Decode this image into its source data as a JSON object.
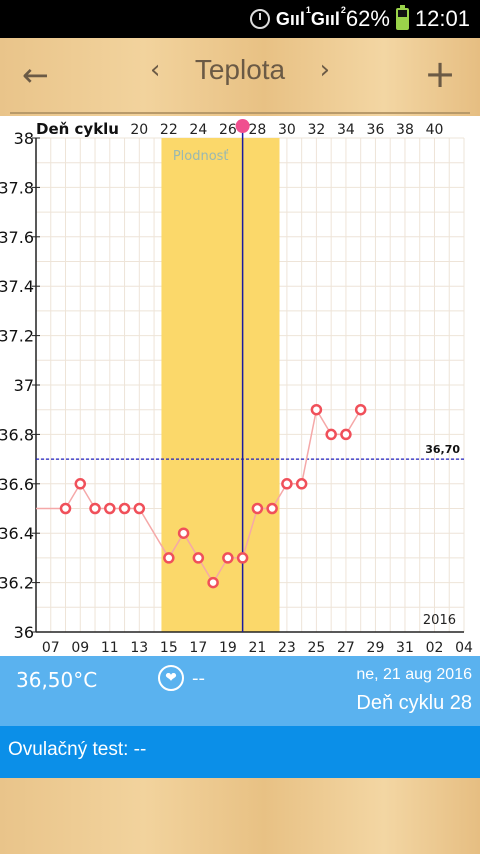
{
  "status_bar": {
    "battery": "62%",
    "time": "12:01",
    "signal_sim1": "1",
    "signal_sim2": "2",
    "signal_label": "G"
  },
  "toolbar": {
    "title": "Teplota",
    "back_icon": "arrow-left-icon",
    "add_icon": "plus-icon"
  },
  "chart_data": {
    "type": "line",
    "top_axis_label": "Deň cyklu",
    "top_axis_ticks": [
      "20",
      "22",
      "24",
      "26",
      "28",
      "30",
      "32",
      "34",
      "36",
      "38",
      "40"
    ],
    "fertile_label": "Plodnosť",
    "year_label": "2016",
    "coverline_label": "36,70",
    "coverline_value": 36.7,
    "ylim": [
      36,
      38
    ],
    "y_ticks": [
      "36",
      "36.2",
      "36.4",
      "36.6",
      "36.8",
      "37",
      "37.2",
      "37.4",
      "37.6",
      "37.8",
      "38"
    ],
    "x_ticks": [
      "07",
      "09",
      "11",
      "13",
      "15",
      "17",
      "19",
      "21",
      "23",
      "25",
      "27",
      "29",
      "31",
      "02",
      "04"
    ],
    "x_day_range": [
      6,
      35
    ],
    "fertile_range": [
      15,
      22
    ],
    "current_day": 20,
    "series": [
      {
        "x": [
          6,
          8,
          9,
          10,
          11,
          12,
          13,
          15,
          16,
          17,
          18,
          19,
          20,
          21,
          22,
          23,
          24,
          25,
          26,
          27,
          28
        ],
        "values": [
          36.5,
          36.5,
          36.6,
          36.5,
          36.5,
          36.5,
          36.5,
          36.3,
          36.4,
          36.3,
          36.2,
          36.3,
          36.3,
          36.5,
          36.5,
          36.6,
          36.6,
          36.9,
          36.8,
          36.8,
          36.9
        ]
      }
    ],
    "colors": {
      "line": "#f5a8a8",
      "marker": "#f0505a",
      "fertile": "#fbd86a",
      "current": "#1a1aa0",
      "coverline": "#2020c0",
      "current_dot": "#f04f8f"
    }
  },
  "info_bar": {
    "temperature": "36,50°C",
    "heart_value": "--",
    "date": "ne, 21 aug 2016",
    "cycle_day": "Deň cyklu 28"
  },
  "ovulation": {
    "label": "Ovulačný test: --"
  }
}
